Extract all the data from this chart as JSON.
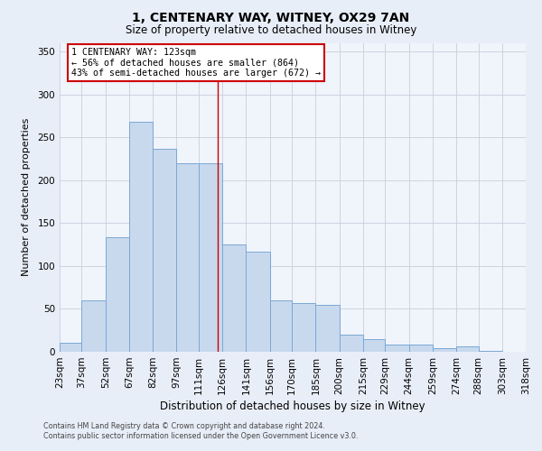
{
  "title": "1, CENTENARY WAY, WITNEY, OX29 7AN",
  "subtitle": "Size of property relative to detached houses in Witney",
  "xlabel": "Distribution of detached houses by size in Witney",
  "ylabel": "Number of detached properties",
  "bar_color": "#c8d9ee",
  "bar_edge_color": "#7aa8d4",
  "background_color": "#e8eef8",
  "plot_bg_color": "#f0f4fb",
  "grid_color": "#c8d0dc",
  "vline_x": 123,
  "vline_color": "#cc0000",
  "annotation_line1": "1 CENTENARY WAY: 123sqm",
  "annotation_line2": "← 56% of detached houses are smaller (864)",
  "annotation_line3": "43% of semi-detached houses are larger (672) →",
  "annotation_box_color": "#ffffff",
  "annotation_edge_color": "#cc0000",
  "bins": [
    23,
    37,
    52,
    67,
    82,
    97,
    111,
    126,
    141,
    156,
    170,
    185,
    200,
    215,
    229,
    244,
    259,
    274,
    288,
    303,
    318
  ],
  "bin_labels": [
    "23sqm",
    "37sqm",
    "52sqm",
    "67sqm",
    "82sqm",
    "97sqm",
    "111sqm",
    "126sqm",
    "141sqm",
    "156sqm",
    "170sqm",
    "185sqm",
    "200sqm",
    "215sqm",
    "229sqm",
    "244sqm",
    "259sqm",
    "274sqm",
    "288sqm",
    "303sqm",
    "318sqm"
  ],
  "counts": [
    10,
    60,
    133,
    268,
    237,
    220,
    220,
    125,
    117,
    60,
    57,
    55,
    20,
    15,
    8,
    8,
    4,
    6,
    1,
    0
  ],
  "ylim": [
    0,
    360
  ],
  "yticks": [
    0,
    50,
    100,
    150,
    200,
    250,
    300,
    350
  ],
  "footnote1": "Contains HM Land Registry data © Crown copyright and database right 2024.",
  "footnote2": "Contains public sector information licensed under the Open Government Licence v3.0."
}
